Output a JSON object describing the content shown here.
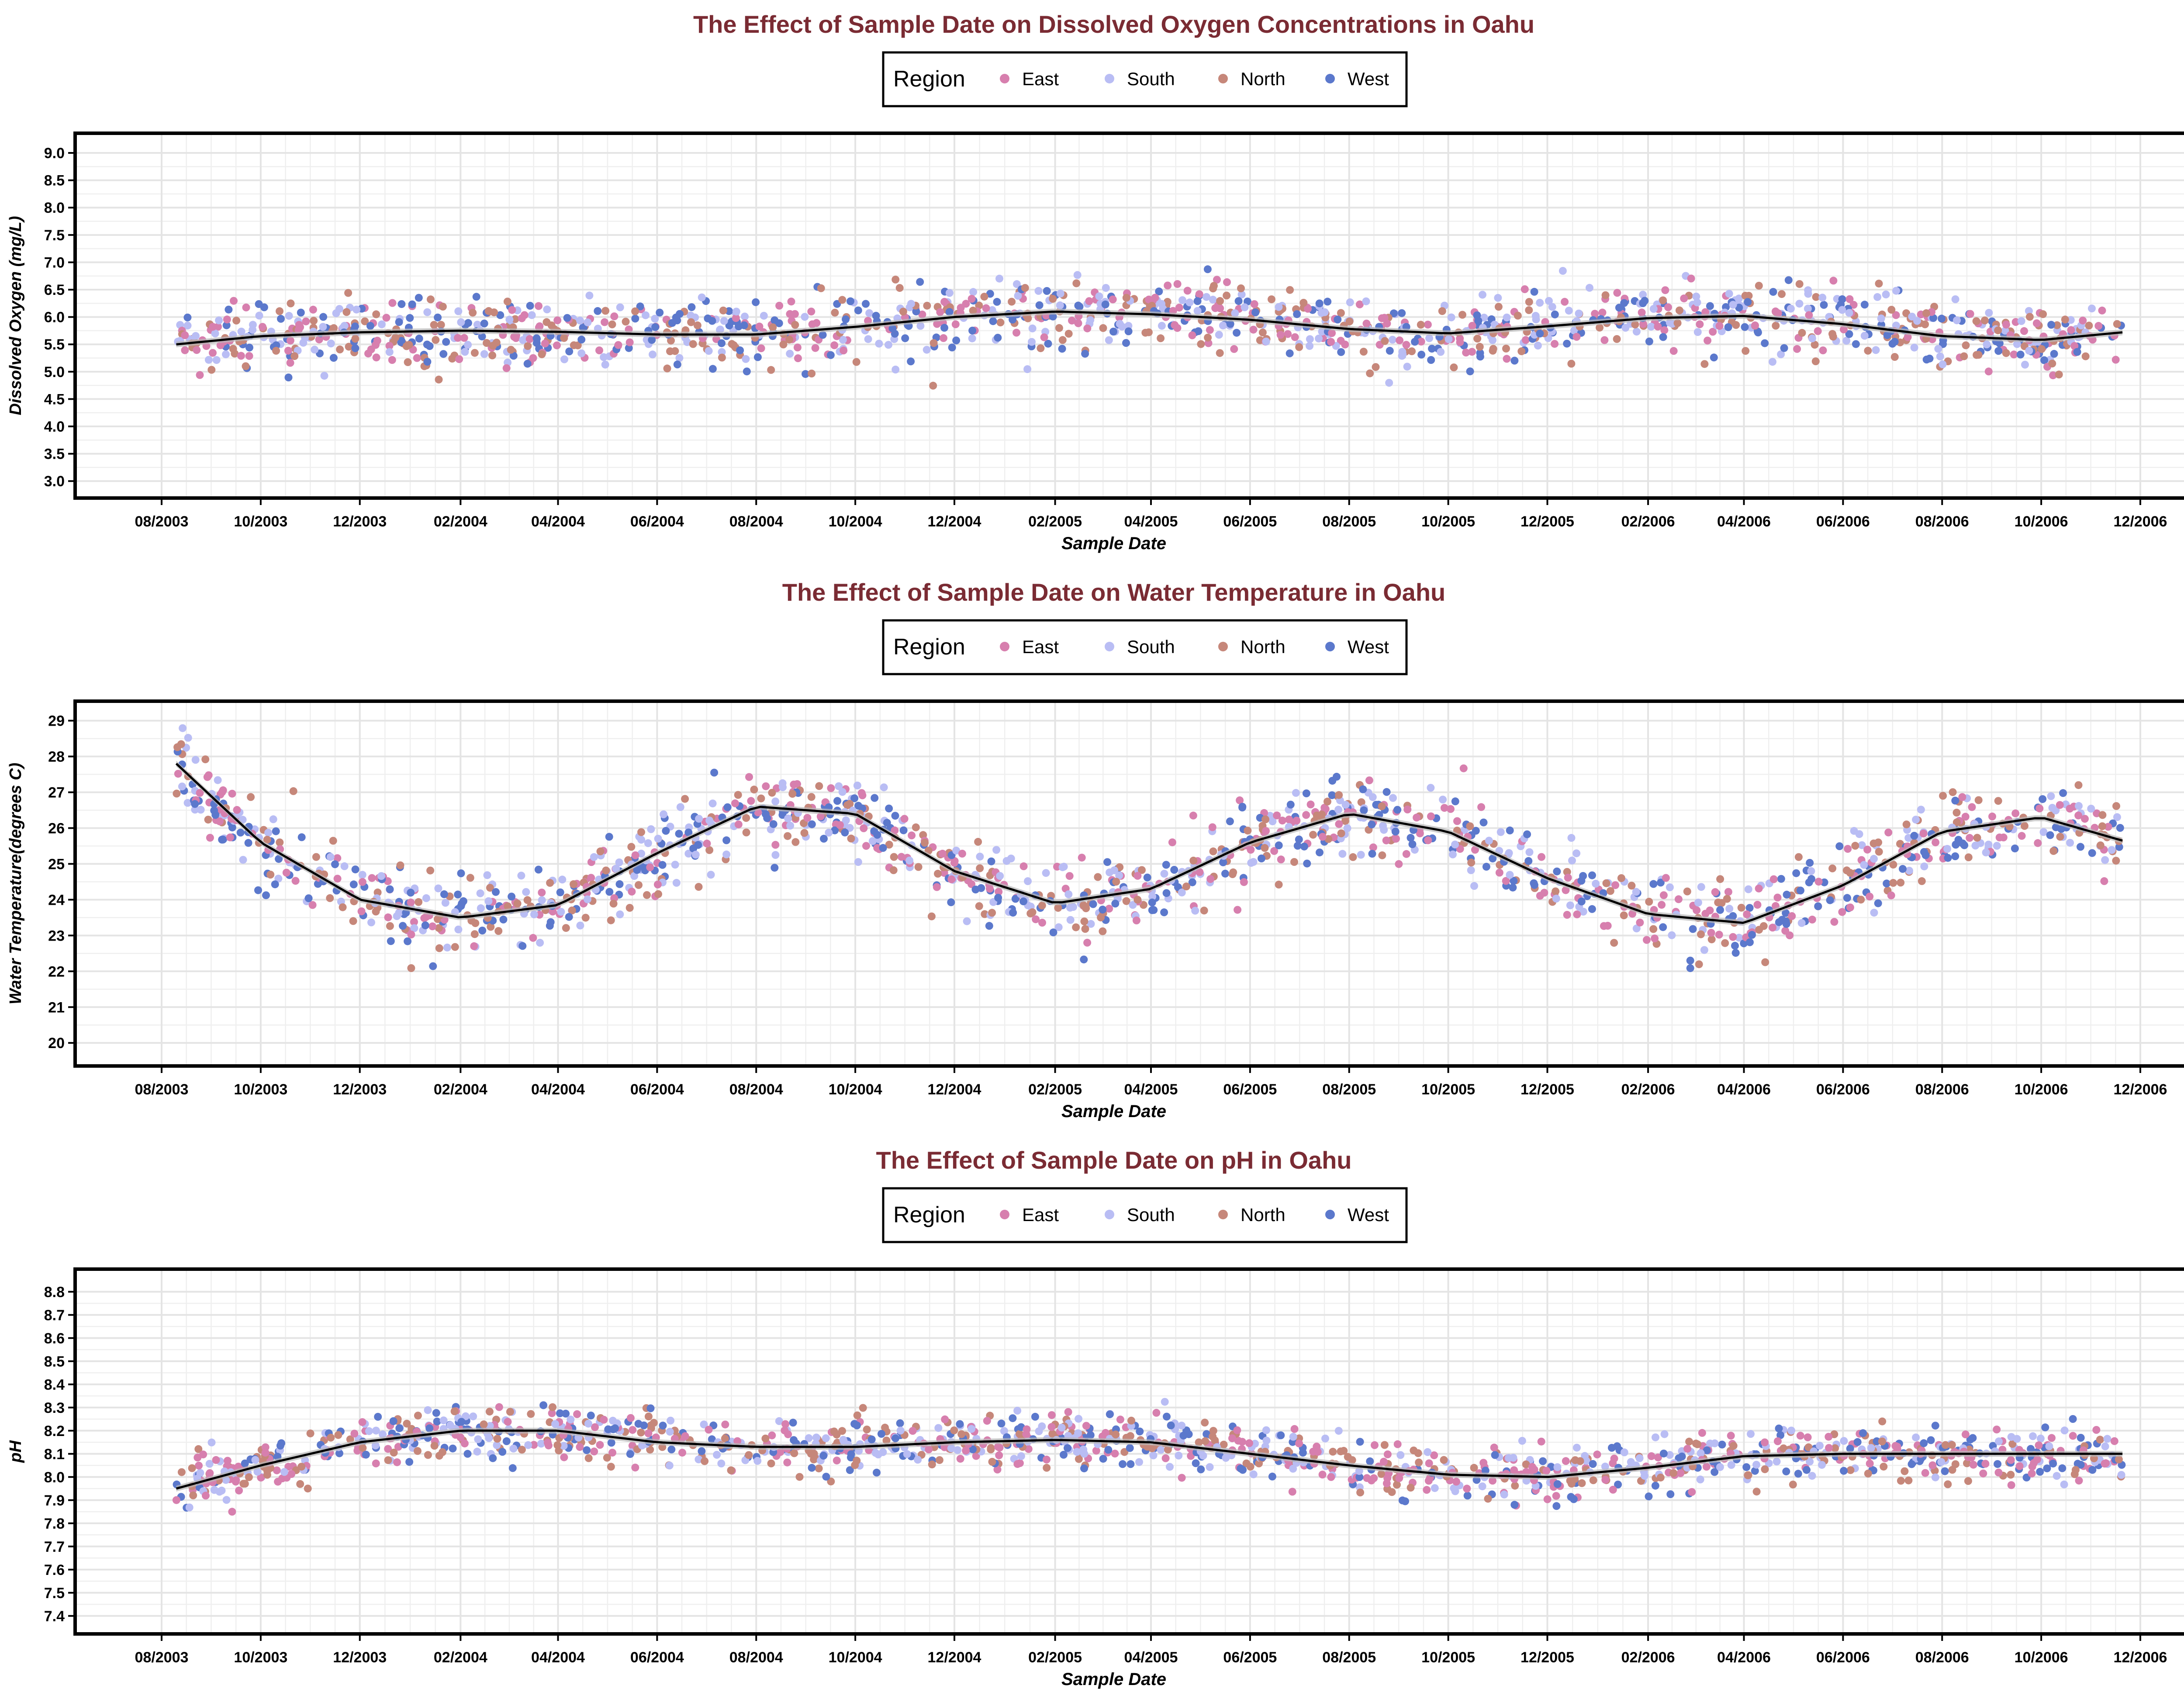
{
  "chart_data": [
    {
      "type": "scatter",
      "title": "The Effect of Sample Date on Dissolved Oxygen Concentrations in Oahu",
      "xlabel": "Sample Date",
      "ylabel": "Dissolved Oxygen (mg/L)",
      "legend": {
        "title": "Region",
        "position": "top-center"
      },
      "series": [
        {
          "name": "East",
          "color": "#d77fae"
        },
        {
          "name": "South",
          "color": "#b9bdf4"
        },
        {
          "name": "North",
          "color": "#c6877a"
        },
        {
          "name": "West",
          "color": "#5b78cc"
        }
      ],
      "x_ticks": [
        "08/2003",
        "10/2003",
        "12/2003",
        "02/2004",
        "04/2004",
        "06/2004",
        "08/2004",
        "10/2004",
        "12/2004",
        "02/2005",
        "04/2005",
        "06/2005",
        "08/2005",
        "10/2005",
        "12/2005",
        "02/2006",
        "04/2006",
        "06/2006",
        "08/2006",
        "10/2006",
        "12/2006"
      ],
      "y_ticks": [
        "3.0",
        "3.5",
        "4.0",
        "4.5",
        "5.0",
        "5.5",
        "6.0",
        "6.5",
        "7.0",
        "7.5",
        "8.0",
        "8.5",
        "9.0"
      ],
      "ylim": [
        2.85,
        9.2
      ],
      "grid": true,
      "trend": {
        "x": [
          "2003-08-10",
          "2003-10-01",
          "2003-12-01",
          "2004-02-01",
          "2004-04-01",
          "2004-06-01",
          "2004-08-01",
          "2004-10-01",
          "2004-12-01",
          "2005-02-01",
          "2005-04-01",
          "2005-06-01",
          "2005-08-01",
          "2005-10-01",
          "2005-12-01",
          "2006-02-01",
          "2006-04-01",
          "2006-06-01",
          "2006-08-01",
          "2006-10-01",
          "2006-11-20"
        ],
        "y": [
          5.5,
          5.65,
          5.72,
          5.75,
          5.73,
          5.68,
          5.68,
          5.82,
          6.0,
          6.1,
          6.05,
          5.95,
          5.78,
          5.7,
          5.83,
          5.98,
          6.02,
          5.87,
          5.65,
          5.58,
          5.72
        ]
      },
      "point_spread": 0.55
    },
    {
      "type": "scatter",
      "title": "The Effect of Sample Date on Water Temperature in Oahu",
      "xlabel": "Sample Date",
      "ylabel": "Water Temperature(degrees C)",
      "legend": {
        "title": "Region",
        "position": "top-center"
      },
      "series": [
        {
          "name": "East",
          "color": "#d77fae"
        },
        {
          "name": "South",
          "color": "#b9bdf4"
        },
        {
          "name": "North",
          "color": "#c6877a"
        },
        {
          "name": "West",
          "color": "#5b78cc"
        }
      ],
      "x_ticks": [
        "08/2003",
        "10/2003",
        "12/2003",
        "02/2004",
        "04/2004",
        "06/2004",
        "08/2004",
        "10/2004",
        "12/2004",
        "02/2005",
        "04/2005",
        "06/2005",
        "08/2005",
        "10/2005",
        "12/2005",
        "02/2006",
        "04/2006",
        "06/2006",
        "08/2006",
        "10/2006",
        "12/2006"
      ],
      "y_ticks": [
        "20",
        "21",
        "22",
        "23",
        "24",
        "25",
        "26",
        "27",
        "28",
        "29"
      ],
      "ylim": [
        19.6,
        29.3
      ],
      "grid": true,
      "trend": {
        "x": [
          "2003-08-10",
          "2003-10-01",
          "2003-12-01",
          "2004-02-01",
          "2004-04-01",
          "2004-06-01",
          "2004-08-01",
          "2004-10-01",
          "2004-12-01",
          "2005-02-01",
          "2005-04-01",
          "2005-06-01",
          "2005-08-01",
          "2005-10-01",
          "2005-12-01",
          "2006-02-01",
          "2006-04-01",
          "2006-06-01",
          "2006-08-01",
          "2006-10-01",
          "2006-11-20"
        ],
        "y": [
          27.8,
          25.6,
          24.0,
          23.5,
          23.85,
          25.3,
          26.6,
          26.4,
          24.8,
          23.9,
          24.3,
          25.6,
          26.4,
          25.9,
          24.6,
          23.6,
          23.35,
          24.4,
          25.9,
          26.3,
          25.65
        ]
      },
      "point_spread": 1.0
    },
    {
      "type": "scatter",
      "title": "The Effect of Sample Date on pH in Oahu",
      "xlabel": "Sample Date",
      "ylabel": "pH",
      "legend": {
        "title": "Region",
        "position": "top-center"
      },
      "series": [
        {
          "name": "East",
          "color": "#d77fae"
        },
        {
          "name": "South",
          "color": "#b9bdf4"
        },
        {
          "name": "North",
          "color": "#c6877a"
        },
        {
          "name": "West",
          "color": "#5b78cc"
        }
      ],
      "x_ticks": [
        "08/2003",
        "10/2003",
        "12/2003",
        "02/2004",
        "04/2004",
        "06/2004",
        "08/2004",
        "10/2004",
        "12/2004",
        "02/2005",
        "04/2005",
        "06/2005",
        "08/2005",
        "10/2005",
        "12/2005",
        "02/2006",
        "04/2006",
        "06/2006",
        "08/2006",
        "10/2006",
        "12/2006"
      ],
      "y_ticks": [
        "7.4",
        "7.5",
        "7.6",
        "7.7",
        "7.8",
        "7.9",
        "8.0",
        "8.1",
        "8.2",
        "8.3",
        "8.4",
        "8.5",
        "8.6",
        "8.7",
        "8.8"
      ],
      "ylim": [
        7.36,
        8.86
      ],
      "grid": true,
      "trend": {
        "x": [
          "2003-08-10",
          "2003-10-01",
          "2003-12-01",
          "2004-02-01",
          "2004-04-01",
          "2004-06-01",
          "2004-08-01",
          "2004-10-01",
          "2004-12-01",
          "2005-02-01",
          "2005-04-01",
          "2005-06-01",
          "2005-08-01",
          "2005-10-01",
          "2005-12-01",
          "2006-02-01",
          "2006-04-01",
          "2006-06-01",
          "2006-08-01",
          "2006-10-01",
          "2006-11-20"
        ],
        "y": [
          7.95,
          8.05,
          8.15,
          8.2,
          8.2,
          8.15,
          8.13,
          8.13,
          8.15,
          8.16,
          8.15,
          8.1,
          8.05,
          8.01,
          8.0,
          8.04,
          8.09,
          8.1,
          8.1,
          8.1,
          8.1
        ]
      },
      "point_spread": 0.1
    }
  ]
}
